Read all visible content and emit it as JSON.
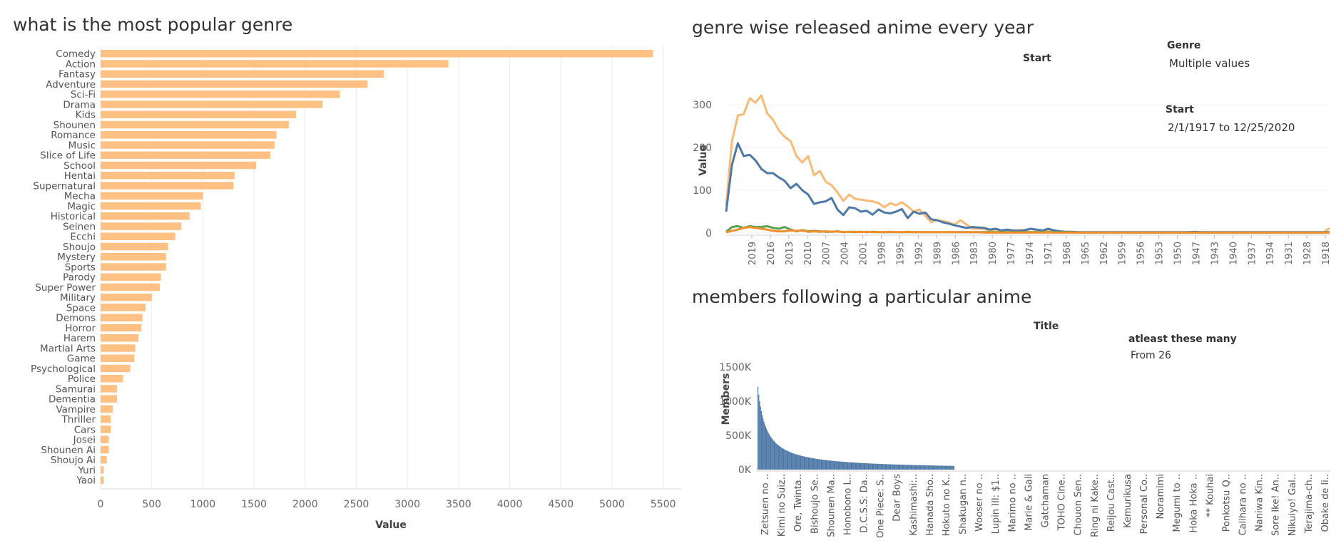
{
  "charts": {
    "genre": {
      "title": "what is the most popular genre",
      "xlabel": "Value",
      "xticks": [
        0,
        500,
        1000,
        1500,
        2000,
        2500,
        3000,
        3500,
        4000,
        4500,
        5000,
        5500
      ],
      "color": "#ffc183"
    },
    "yearly": {
      "title": "genre wise released anime every year",
      "ylabel": "Value",
      "start_label": "Start",
      "genre_filter_label": "Genre",
      "genre_filter_value": "Multiple values",
      "start_filter_label": "Start",
      "start_filter_value": "2/1/1917 to 12/25/2020",
      "yticks": [
        0,
        100,
        200,
        300
      ],
      "xticks": [
        "2019",
        "2016",
        "2013",
        "2010",
        "2007",
        "2004",
        "2001",
        "1998",
        "1995",
        "1992",
        "1989",
        "1986",
        "1983",
        "1980",
        "1977",
        "1974",
        "1971",
        "1968",
        "1965",
        "1962",
        "1959",
        "1956",
        "1953",
        "1950",
        "1947",
        "1943",
        "1940",
        "1937",
        "1934",
        "1931",
        "1928",
        "1918"
      ]
    },
    "members": {
      "title": "members following a particular anime",
      "top_label": "Title",
      "ylabel": "Members",
      "filter_label": "atleast these many",
      "filter_value": "From 26",
      "yticks": [
        "0K",
        "500K",
        "1000K",
        "1500K"
      ],
      "xticks": [
        "Zetsuen no ..",
        "Kimi no Suiz..",
        "Ore, Twinta..",
        "Bishoujo Se..",
        "Shounen Ma..",
        "Honobono L..",
        "D.C.S.S: Da..",
        "One Piece: S..",
        "Dear Boys",
        "Kashimashi:..",
        "Hanada Sho..",
        "Hokuto no K..",
        "Shakugan n..",
        "Wooser no ..",
        "Lupin III: $1..",
        "Marimo no ..",
        "Marie & Gali",
        "Gatchaman",
        "TOHO Cine..",
        "Chouon Sen..",
        "Ring ni Kake..",
        "Reijou Cast..",
        "Kemurikusa",
        "Personal Co..",
        "Noramimi",
        "Megumi to ..",
        "Hoka Hoka ..",
        "** Kouhai",
        "Ponkotsu Q..",
        "Calihara no ..",
        "Naniwa Kin..",
        "Sore Ike! An..",
        "Nikuiyo! Gal..",
        "Terajima-ch..",
        "Obake de li.."
      ]
    }
  },
  "chart_data": [
    {
      "type": "bar",
      "title": "what is the most popular genre",
      "xlabel": "Value",
      "ylabel": "",
      "orientation": "horizontal",
      "xlim": [
        0,
        5700
      ],
      "categories": [
        "Comedy",
        "Action",
        "Fantasy",
        "Adventure",
        "Sci-Fi",
        "Drama",
        "Kids",
        "Shounen",
        "Romance",
        "Music",
        "Slice of Life",
        "School",
        "Hentai",
        "Supernatural",
        "Mecha",
        "Magic",
        "Historical",
        "Seinen",
        "Ecchi",
        "Shoujo",
        "Mystery",
        "Sports",
        "Parody",
        "Super Power",
        "Military",
        "Space",
        "Demons",
        "Horror",
        "Harem",
        "Martial Arts",
        "Game",
        "Psychological",
        "Police",
        "Samurai",
        "Dementia",
        "Vampire",
        "Thriller",
        "Cars",
        "Josei",
        "Shounen Ai",
        "Shoujo Ai",
        "Yuri",
        "Yaoi"
      ],
      "values": [
        5400,
        3400,
        2770,
        2610,
        2340,
        2170,
        1910,
        1840,
        1720,
        1700,
        1660,
        1520,
        1310,
        1300,
        1000,
        980,
        870,
        790,
        730,
        660,
        640,
        640,
        590,
        580,
        500,
        440,
        410,
        400,
        370,
        340,
        330,
        290,
        220,
        160,
        160,
        120,
        100,
        100,
        80,
        80,
        60,
        30,
        30
      ]
    },
    {
      "type": "line",
      "title": "genre wise released anime every year",
      "xlabel": "",
      "ylabel": "Value",
      "ylim": [
        0,
        330
      ],
      "x_years_descending": [
        2020,
        2019,
        2018,
        2017,
        2016,
        2015,
        2014,
        2013,
        2012,
        2011,
        2010,
        2009,
        2008,
        2007,
        2006,
        2005,
        2004,
        2003,
        2002,
        2001,
        2000,
        1999,
        1998,
        1997,
        1996,
        1995,
        1994,
        1993,
        1992,
        1991,
        1990,
        1989,
        1988,
        1987,
        1986,
        1985,
        1984,
        1983,
        1982,
        1981,
        1980,
        1979,
        1978,
        1977,
        1976,
        1975,
        1974,
        1973,
        1972,
        1971,
        1970,
        1969,
        1968,
        1967,
        1966,
        1965,
        1964,
        1963,
        1962,
        1961,
        1960,
        1959,
        1958,
        1957,
        1956,
        1955,
        1954,
        1953,
        1952,
        1951,
        1950,
        1949,
        1948,
        1947,
        1946,
        1945,
        1944,
        1943,
        1942,
        1941,
        1940,
        1939,
        1938,
        1937,
        1936,
        1935,
        1934,
        1933,
        1932,
        1931,
        1930,
        1929,
        1928,
        1927,
        1926,
        1925,
        1924,
        1923,
        1922,
        1921,
        1920,
        1919,
        1918,
        1917
      ],
      "series": [
        {
          "color": "#f8bb77",
          "values": [
            65,
            215,
            275,
            278,
            315,
            305,
            322,
            280,
            265,
            240,
            225,
            215,
            180,
            165,
            180,
            135,
            145,
            120,
            112,
            95,
            75,
            90,
            80,
            78,
            76,
            74,
            70,
            60,
            70,
            65,
            72,
            62,
            50,
            55,
            40,
            25,
            30,
            28,
            25,
            20,
            30,
            20,
            10,
            10,
            10,
            5,
            8,
            5,
            5,
            5,
            8,
            5,
            10,
            6,
            5,
            6,
            3,
            2,
            2,
            1,
            1,
            1,
            1,
            1,
            1,
            1,
            1,
            1,
            1,
            1,
            1,
            1,
            1,
            1,
            1,
            1,
            1,
            1,
            1,
            1,
            2,
            1,
            1,
            1,
            1,
            1,
            1,
            1,
            1,
            1,
            1,
            1,
            1,
            1,
            1,
            1,
            1,
            1,
            1,
            1,
            1,
            1,
            1,
            12
          ]
        },
        {
          "color": "#4e79a7",
          "values": [
            50,
            160,
            210,
            180,
            183,
            170,
            150,
            140,
            140,
            130,
            122,
            105,
            115,
            100,
            90,
            68,
            72,
            74,
            82,
            55,
            42,
            60,
            58,
            50,
            52,
            43,
            55,
            48,
            46,
            50,
            56,
            35,
            50,
            45,
            48,
            32,
            30,
            25,
            22,
            18,
            15,
            12,
            14,
            13,
            12,
            8,
            10,
            6,
            8,
            6,
            5,
            7,
            10,
            8,
            6,
            10,
            6,
            4,
            3,
            3,
            2,
            2,
            2,
            2,
            2,
            2,
            2,
            2,
            2,
            2,
            2,
            2,
            2,
            2,
            2,
            2,
            2,
            2,
            2,
            2,
            3,
            2,
            2,
            2,
            2,
            2,
            2,
            2,
            2,
            2,
            2,
            2,
            2,
            2,
            2,
            2,
            2,
            2,
            2,
            2,
            2,
            2,
            2,
            2
          ]
        },
        {
          "color": "#59a14f",
          "values": [
            3,
            14,
            16,
            12,
            16,
            14,
            14,
            16,
            12,
            10,
            14,
            8,
            4,
            7,
            4,
            5,
            4,
            3,
            3,
            4,
            2,
            3,
            2,
            3,
            2,
            3,
            2,
            2,
            2,
            2,
            2,
            2,
            2,
            2,
            2,
            2,
            2,
            2,
            2,
            2,
            2,
            2,
            2,
            2,
            2,
            2,
            2,
            2,
            2,
            2,
            2,
            2,
            2,
            2,
            2,
            2,
            2,
            2,
            2,
            2,
            1,
            1,
            1,
            1,
            1,
            1,
            1,
            1,
            1,
            1,
            1,
            1,
            1,
            1,
            1,
            1,
            1,
            1,
            1,
            1,
            1,
            1,
            1,
            1,
            1,
            1,
            1,
            1,
            1,
            1,
            1,
            1,
            1,
            1,
            1,
            1,
            1,
            1,
            1,
            1,
            1,
            1,
            1,
            1
          ]
        },
        {
          "color": "#f28e2b",
          "values": [
            2,
            5,
            8,
            12,
            14,
            12,
            10,
            8,
            5,
            4,
            4,
            6,
            5,
            6,
            3,
            4,
            3,
            4,
            3,
            4,
            2,
            3,
            3,
            2,
            3,
            2,
            2,
            2,
            3,
            2,
            2,
            3,
            2,
            2,
            2,
            2,
            2,
            2,
            2,
            2,
            2,
            2,
            2,
            2,
            1,
            1,
            1,
            1,
            1,
            1,
            1,
            1,
            1,
            1,
            1,
            1,
            1,
            1,
            1,
            1,
            1,
            1,
            1,
            1,
            1,
            1,
            1,
            1,
            1,
            1,
            1,
            1,
            1,
            1,
            1,
            1,
            1,
            1,
            1,
            1,
            1,
            1,
            1,
            1,
            1,
            1,
            1,
            1,
            1,
            1,
            1,
            1,
            1,
            1,
            1,
            1,
            1,
            1,
            1,
            1,
            1,
            1,
            1,
            1
          ]
        }
      ]
    },
    {
      "type": "bar",
      "title": "members following a particular anime",
      "xlabel": "Title",
      "ylabel": "Members",
      "ylim": [
        0,
        1600000
      ],
      "distribution": "long-tail, descending",
      "max_value": 1210000,
      "bar_count": 230,
      "color": "#4e79a7"
    }
  ]
}
